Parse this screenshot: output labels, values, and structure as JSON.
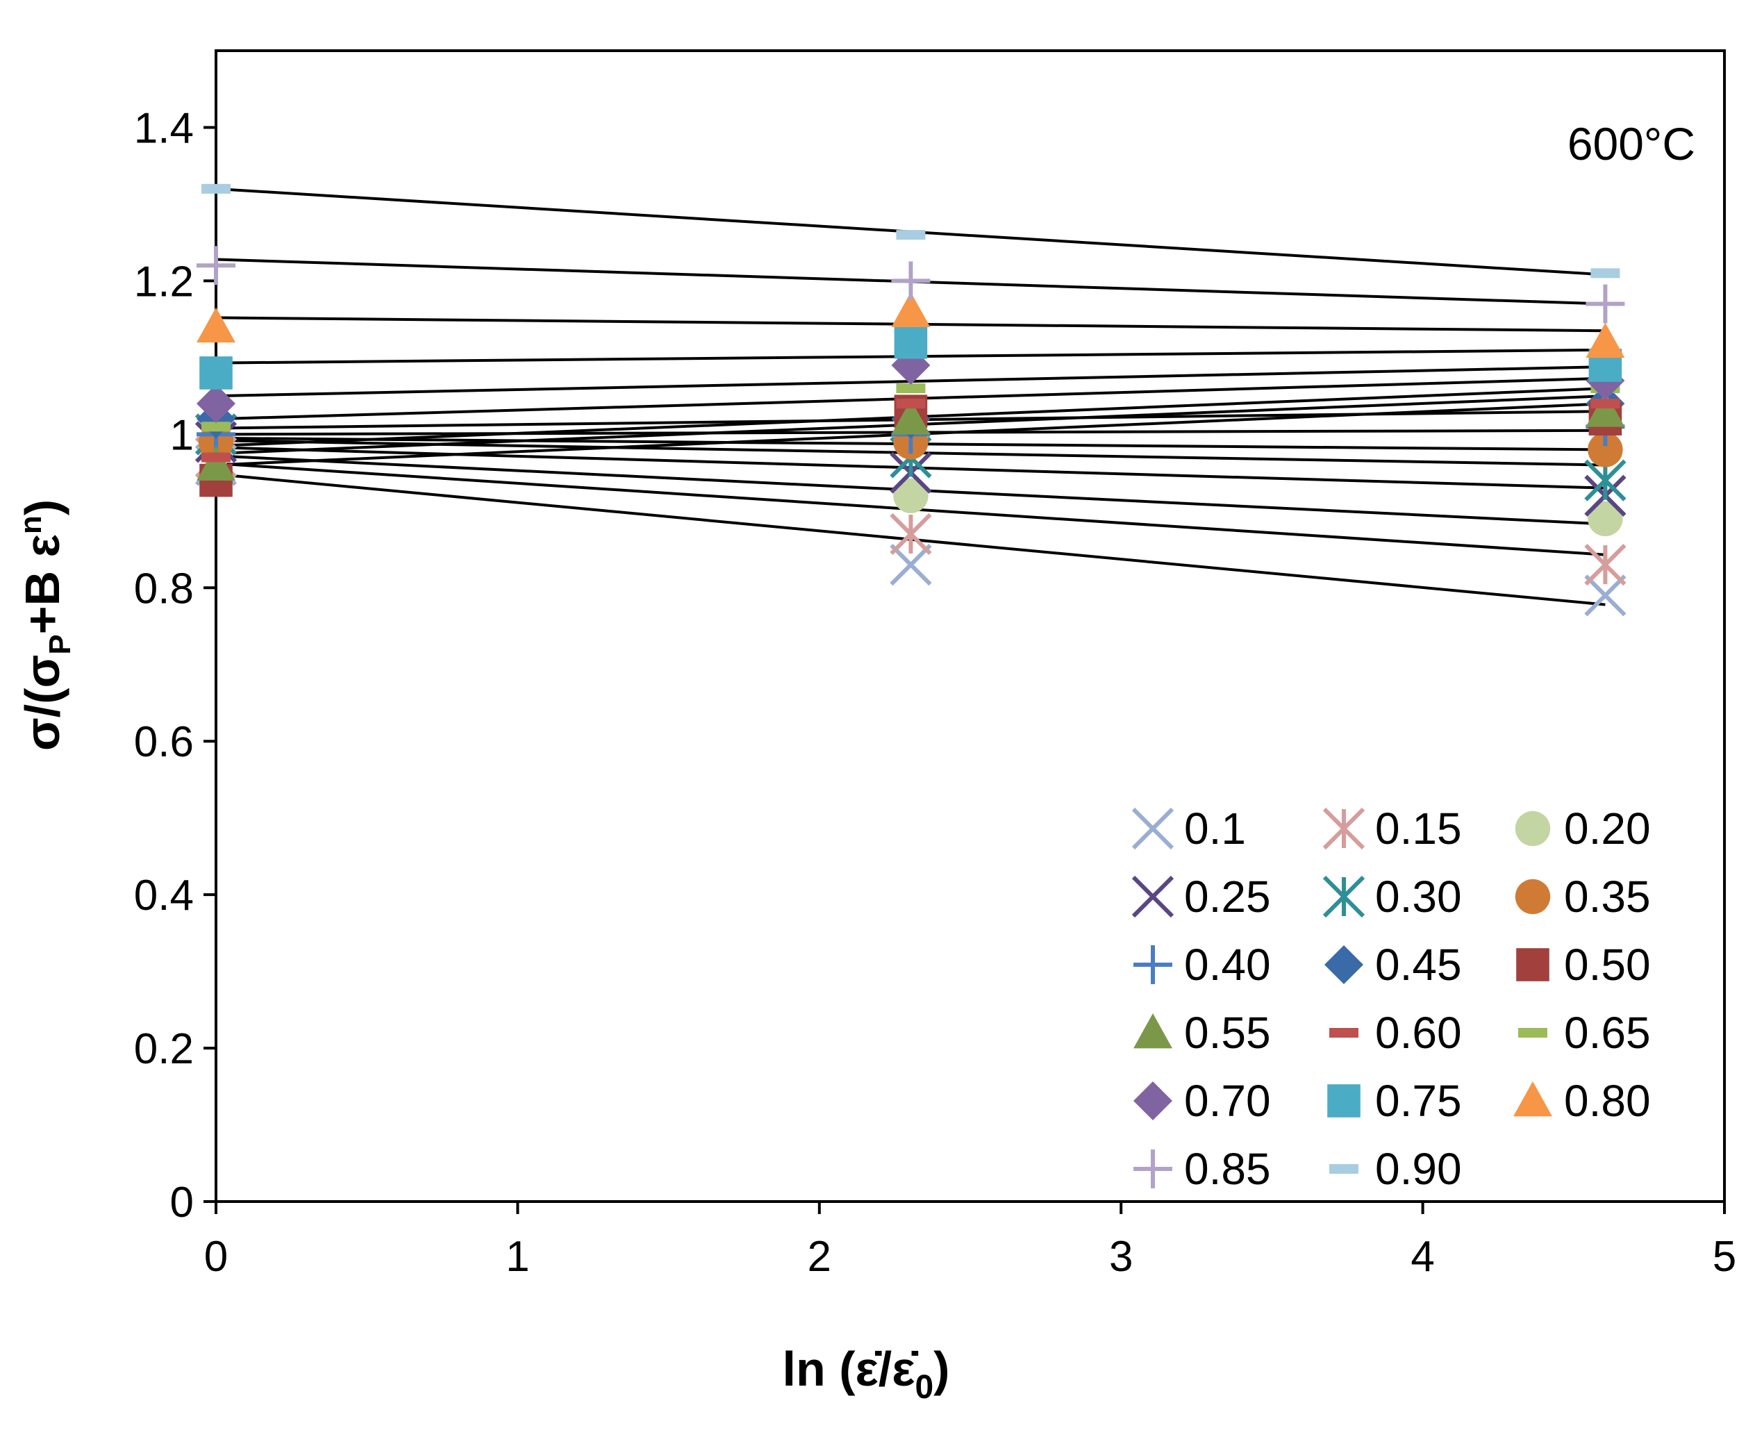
{
  "chart_data": {
    "type": "scatter",
    "annotation": "600°C",
    "xlabel": {
      "main": "ln (",
      "num": "ε̇",
      "slash": "/",
      "den": "ε̇",
      "den_sub": "0",
      "close": ")"
    },
    "ylabel": {
      "part1": "σ/(σ",
      "sub": "P",
      "part2": "+B ε",
      "sup": "n",
      "part3": ")"
    },
    "xlim": [
      0,
      5
    ],
    "ylim": [
      0,
      1.5
    ],
    "xticks": [
      0,
      1,
      2,
      3,
      4,
      5
    ],
    "xtick_labels": [
      "0",
      "1",
      "2",
      "3",
      "4",
      "5"
    ],
    "yticks": [
      0,
      0.2,
      0.4,
      0.6,
      0.8,
      1.0,
      1.2,
      1.4
    ],
    "ytick_labels": [
      "0",
      "0.2",
      "0.4",
      "0.6",
      "0.8",
      "1",
      "1.2",
      "1.4"
    ],
    "x": [
      0,
      2.303,
      4.605
    ],
    "legend_position": "bottom-right",
    "series": [
      {
        "name": "0.1",
        "marker": "x",
        "color": "#9aaed3",
        "values": [
          0.96,
          0.83,
          0.79
        ],
        "fit": [
          0.948,
          0.778
        ]
      },
      {
        "name": "0.15",
        "marker": "asterisk",
        "color": "#d59d9b",
        "values": [
          0.97,
          0.87,
          0.83
        ],
        "fit": [
          0.962,
          0.843
        ]
      },
      {
        "name": "0.20",
        "marker": "circle",
        "color": "#c3d5a3",
        "values": [
          0.98,
          0.92,
          0.89
        ],
        "fit": [
          0.972,
          0.883
        ]
      },
      {
        "name": "0.25",
        "marker": "x",
        "color": "#5a4585",
        "values": [
          0.99,
          0.95,
          0.92
        ],
        "fit": [
          0.983,
          0.93
        ]
      },
      {
        "name": "0.30",
        "marker": "asterisk",
        "color": "#2e8f96",
        "values": [
          1.0,
          0.97,
          0.94
        ],
        "fit": [
          0.992,
          0.96
        ]
      },
      {
        "name": "0.35",
        "marker": "circle",
        "color": "#d07b35",
        "values": [
          0.99,
          0.99,
          0.98
        ],
        "fit": [
          0.995,
          0.98
        ]
      },
      {
        "name": "0.40",
        "marker": "plus",
        "color": "#4a7dc1",
        "values": [
          1.0,
          1.0,
          1.01
        ],
        "fit": [
          1.0,
          1.005
        ]
      },
      {
        "name": "0.45",
        "marker": "diamond",
        "color": "#3b6aa8",
        "values": [
          1.02,
          1.02,
          1.04
        ],
        "fit": [
          1.008,
          1.03
        ]
      },
      {
        "name": "0.50",
        "marker": "square",
        "color": "#a2403d",
        "values": [
          0.94,
          1.03,
          1.02
        ],
        "fit": [
          0.96,
          1.04
        ]
      },
      {
        "name": "0.55",
        "marker": "triangle",
        "color": "#7b9848",
        "values": [
          0.96,
          1.02,
          1.03
        ],
        "fit": [
          0.975,
          1.05
        ]
      },
      {
        "name": "0.60",
        "marker": "dash",
        "color": "#c0504d",
        "values": [
          0.97,
          1.04,
          1.04
        ],
        "fit": [
          0.985,
          1.06
        ]
      },
      {
        "name": "0.65",
        "marker": "dash",
        "color": "#9bbb59",
        "values": [
          1.01,
          1.06,
          1.06
        ],
        "fit": [
          1.02,
          1.073
        ]
      },
      {
        "name": "0.70",
        "marker": "diamond",
        "color": "#8064a2",
        "values": [
          1.04,
          1.09,
          1.07
        ],
        "fit": [
          1.05,
          1.088
        ]
      },
      {
        "name": "0.75",
        "marker": "square",
        "color": "#4bacc6",
        "values": [
          1.08,
          1.12,
          1.09
        ],
        "fit": [
          1.093,
          1.11
        ]
      },
      {
        "name": "0.80",
        "marker": "triangle",
        "color": "#f79646",
        "values": [
          1.14,
          1.16,
          1.12
        ],
        "fit": [
          1.152,
          1.135
        ]
      },
      {
        "name": "0.85",
        "marker": "plus",
        "color": "#b3a2c7",
        "values": [
          1.22,
          1.2,
          1.17
        ],
        "fit": [
          1.228,
          1.17
        ]
      },
      {
        "name": "0.90",
        "marker": "dash",
        "color": "#a9cde0",
        "values": [
          1.32,
          1.26,
          1.21
        ],
        "fit": [
          1.32,
          1.208
        ]
      }
    ]
  }
}
